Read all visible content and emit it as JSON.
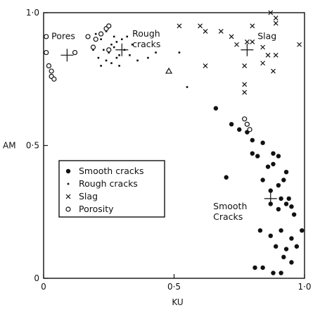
{
  "chart_data": {
    "type": "scatter",
    "xlabel": "KU",
    "ylabel": "AM",
    "xlim": [
      0,
      1.0
    ],
    "ylim": [
      0,
      1.0
    ],
    "x_ticks": [
      {
        "value": 0,
        "label": "0"
      },
      {
        "value": 0.5,
        "label": "0·5"
      },
      {
        "value": 1.0,
        "label": "1·0"
      }
    ],
    "y_ticks": [
      {
        "value": 0,
        "label": "0"
      },
      {
        "value": 0.5,
        "label": "0·5"
      },
      {
        "value": 1.0,
        "label": "1·0"
      }
    ],
    "grid": false,
    "legend_position": "center-left",
    "series": [
      {
        "name": "Smooth cracks",
        "marker": "filled-circle",
        "x": [
          0.66,
          0.72,
          0.75,
          0.7,
          0.78,
          0.8,
          0.8,
          0.82,
          0.84,
          0.86,
          0.88,
          0.9,
          0.88,
          0.9,
          0.93,
          0.92,
          0.94,
          0.95,
          0.87,
          0.91,
          0.84,
          0.87,
          0.9,
          0.93,
          0.96,
          0.83,
          0.87,
          0.91,
          0.95,
          0.99,
          0.89,
          0.93,
          0.97,
          0.92,
          0.95,
          0.81,
          0.84,
          0.88,
          0.91
        ],
        "y": [
          0.64,
          0.58,
          0.56,
          0.38,
          0.55,
          0.52,
          0.47,
          0.46,
          0.51,
          0.42,
          0.47,
          0.46,
          0.43,
          0.35,
          0.4,
          0.37,
          0.3,
          0.27,
          0.33,
          0.3,
          0.37,
          0.28,
          0.26,
          0.28,
          0.24,
          0.18,
          0.16,
          0.18,
          0.15,
          0.18,
          0.12,
          0.11,
          0.12,
          0.08,
          0.06,
          0.04,
          0.04,
          0.02,
          0.02
        ]
      },
      {
        "name": "Rough cracks",
        "marker": "dot",
        "x": [
          0.2,
          0.22,
          0.24,
          0.26,
          0.27,
          0.28,
          0.3,
          0.32,
          0.34,
          0.19,
          0.23,
          0.25,
          0.27,
          0.29,
          0.31,
          0.33,
          0.21,
          0.24,
          0.26,
          0.28,
          0.22,
          0.29,
          0.36,
          0.4,
          0.43,
          0.52,
          0.55
        ],
        "y": [
          0.92,
          0.9,
          0.93,
          0.88,
          0.91,
          0.89,
          0.9,
          0.91,
          0.88,
          0.86,
          0.86,
          0.85,
          0.87,
          0.84,
          0.86,
          0.84,
          0.83,
          0.82,
          0.81,
          0.83,
          0.8,
          0.8,
          0.82,
          0.83,
          0.85,
          0.85,
          0.72
        ]
      },
      {
        "name": "Slag",
        "marker": "x",
        "x": [
          0.52,
          0.6,
          0.62,
          0.68,
          0.74,
          0.8,
          0.87,
          0.89,
          0.89,
          0.72,
          0.78,
          0.8,
          0.84,
          0.86,
          0.89,
          0.98,
          0.62,
          0.77,
          0.84,
          0.88,
          0.77,
          0.77
        ],
        "y": [
          0.95,
          0.95,
          0.93,
          0.93,
          0.88,
          0.95,
          1.0,
          0.98,
          0.96,
          0.91,
          0.89,
          0.89,
          0.87,
          0.84,
          0.84,
          0.88,
          0.8,
          0.8,
          0.81,
          0.78,
          0.73,
          0.7
        ]
      },
      {
        "name": "Porosity",
        "marker": "open-circle",
        "x": [
          0.01,
          0.01,
          0.02,
          0.03,
          0.03,
          0.04,
          0.12,
          0.17,
          0.2,
          0.22,
          0.24,
          0.25,
          0.19,
          0.25,
          0.77,
          0.78,
          0.79
        ],
        "y": [
          0.91,
          0.85,
          0.8,
          0.78,
          0.76,
          0.75,
          0.85,
          0.91,
          0.9,
          0.92,
          0.94,
          0.95,
          0.87,
          0.86,
          0.6,
          0.58,
          0.56
        ]
      },
      {
        "name": "",
        "marker": "open-triangle",
        "x": [
          0.48
        ],
        "y": [
          0.78
        ]
      }
    ],
    "centroids": [
      {
        "label": "Pores",
        "x": 0.09,
        "y": 0.84
      },
      {
        "label": "Rough cracks",
        "x": 0.3,
        "y": 0.86
      },
      {
        "label": "Slag",
        "x": 0.78,
        "y": 0.86
      },
      {
        "label": "Smooth Cracks",
        "x": 0.87,
        "y": 0.3
      }
    ],
    "annotations": [
      {
        "text": "Pores",
        "x": 0.03,
        "y": 0.9
      },
      {
        "text": "Rough",
        "x": 0.34,
        "y": 0.91
      },
      {
        "text": "cracks",
        "x": 0.34,
        "y": 0.87
      },
      {
        "text": "Slag",
        "x": 0.82,
        "y": 0.9
      },
      {
        "text": "Smooth",
        "x": 0.65,
        "y": 0.26
      },
      {
        "text": "Cracks",
        "x": 0.65,
        "y": 0.22
      }
    ],
    "legend": [
      {
        "label": "Smooth cracks",
        "marker": "filled-circle"
      },
      {
        "label": "Rough cracks",
        "marker": "dot"
      },
      {
        "label": "Slag",
        "marker": "x"
      },
      {
        "label": "Porosity",
        "marker": "open-circle"
      }
    ]
  }
}
